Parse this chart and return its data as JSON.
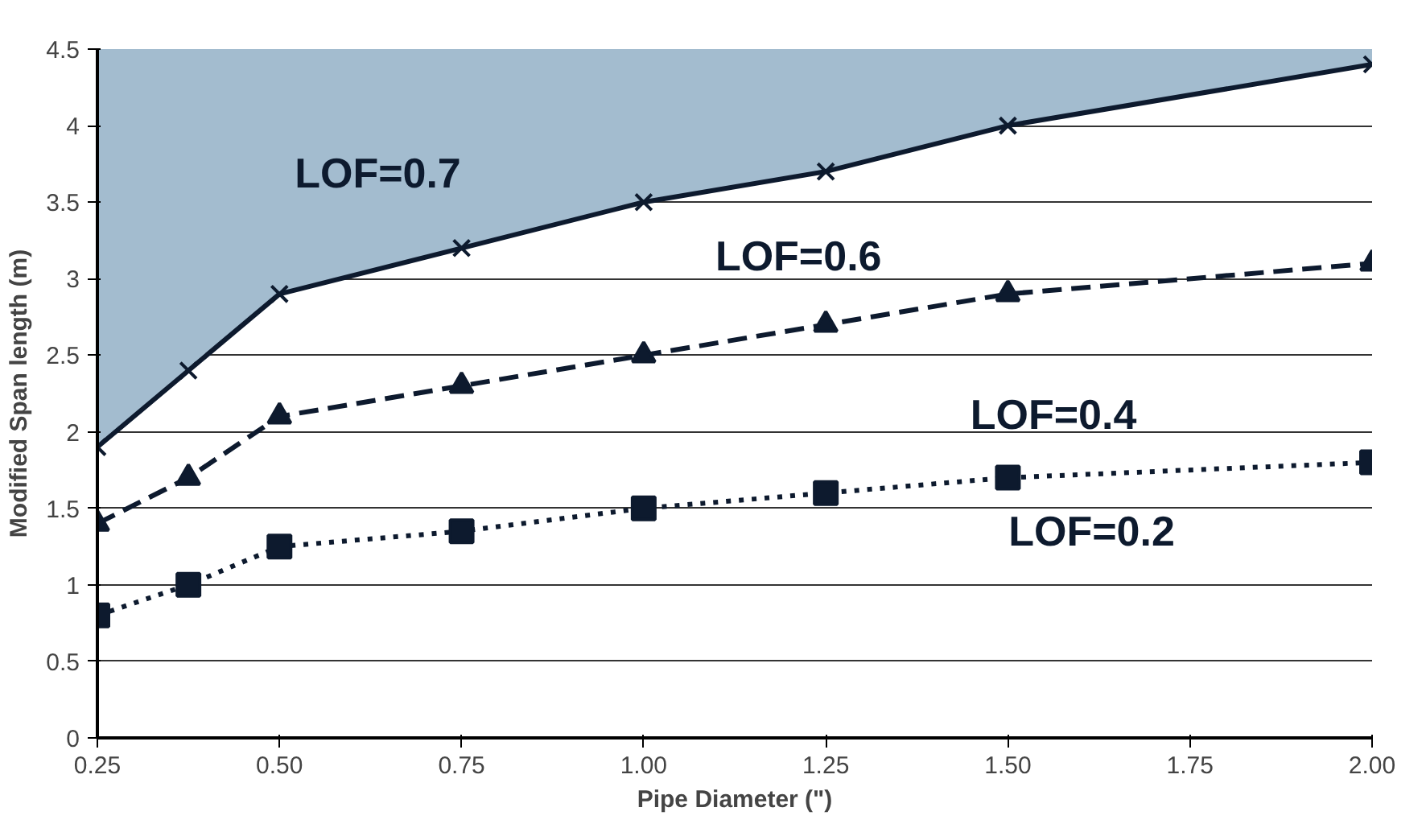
{
  "chart_data": {
    "type": "line",
    "xlabel": "Pipe Diameter (\")",
    "ylabel": "Modified Span length (m)",
    "x": [
      0.25,
      0.375,
      0.5,
      0.75,
      1.0,
      1.25,
      1.5,
      2.0
    ],
    "series": [
      {
        "color": "#0d1a2e",
        "marker": "cross",
        "line_style": "solid",
        "values": [
          1.9,
          2.4,
          2.9,
          3.2,
          3.5,
          3.7,
          4.0,
          4.4
        ],
        "lower": [
          1.9,
          2.4,
          2.9,
          3.2,
          3.5,
          3.7,
          4.0,
          4.4
        ],
        "upper": [
          4.5,
          4.5,
          4.5,
          4.5,
          4.5,
          4.5,
          4.5,
          4.5
        ]
      },
      {
        "color": "#0d1a2e",
        "marker": "triangle",
        "line_style": "dashed",
        "values": [
          1.4,
          1.7,
          2.1,
          2.3,
          2.5,
          2.7,
          2.9,
          3.1
        ]
      },
      {
        "color": "#0d1a2e",
        "marker": "square",
        "line_style": "dotted",
        "values": [
          0.8,
          1.0,
          1.25,
          1.35,
          1.5,
          1.6,
          1.7,
          1.8
        ]
      }
    ],
    "annotations": [
      "LOF=0.7",
      "LOF=0.6",
      "LOF=0.4",
      "LOF=0.2"
    ],
    "xlim": [
      0.25,
      2.0
    ],
    "xticks": [
      0.25,
      {
        "value": 0.5,
        "label": "0.50"
      },
      0.75,
      {
        "value": 1.0,
        "label": "1.00"
      },
      1.25,
      {
        "value": 1.5,
        "label": "1.50"
      },
      1.75,
      {
        "value": 2.0,
        "label": "2.00"
      }
    ],
    "ylim": [
      0,
      4.5
    ],
    "yticks": [
      0,
      0.5,
      1,
      1.5,
      2,
      2.5,
      3,
      3.5,
      4,
      4.5
    ],
    "grid": "y"
  }
}
